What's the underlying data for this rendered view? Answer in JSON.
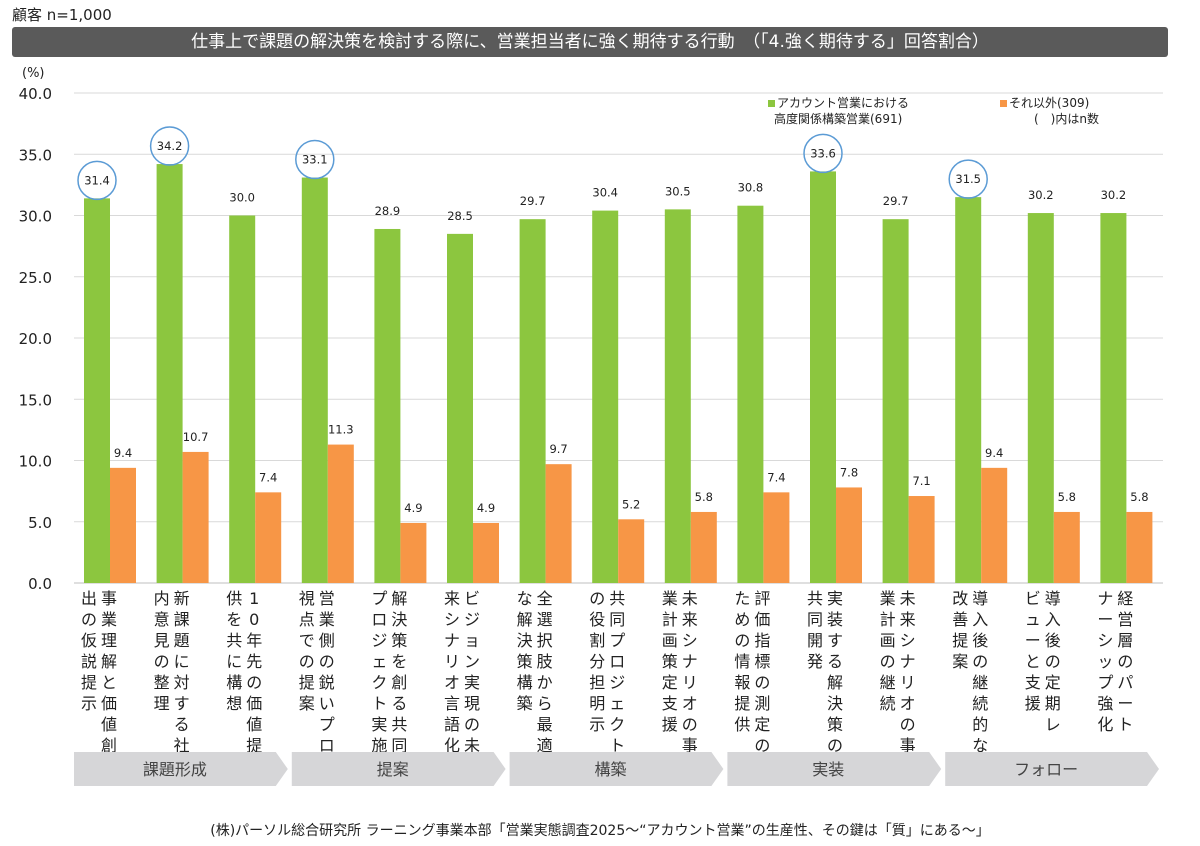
{
  "header": {
    "note": "顧客 n=1,000",
    "title": "仕事上で課題の解決策を検討する際に、営業担当者に強く期待する行動　（「4.強く期待する」回答割合）",
    "unit": "(%)"
  },
  "legend": {
    "green_line1": "アカウント営業における",
    "green_line2": "高度関係構築営業(691)",
    "orange_line1": "それ以外(309)",
    "orange_line2": "(　)内はn数"
  },
  "colors": {
    "green": "#8cc63f",
    "orange": "#f79646",
    "circle": "#5b9bd5",
    "grid": "#d9d9d9",
    "arrow": "#d6d6d8"
  },
  "chart_data": {
    "type": "bar",
    "ylim": [
      0,
      40
    ],
    "y_ticks": [
      "0.0",
      "5.0",
      "10.0",
      "15.0",
      "20.0",
      "25.0",
      "30.0",
      "35.0",
      "40.0"
    ],
    "grid": true,
    "legend_position": "top-right",
    "categories": [
      "事業理解と価値創出の仮説提示",
      "新課題に対する社内意見の整理",
      "10年先の価値提供を共に構想",
      "営業側の鋭いプロ視点での提案",
      "解決策を創る共同プロジェクト実施",
      "ビジョン実現の未来シナリオ言語化",
      "全選択肢から最適な解決策構築",
      "共同プロジェクトの役割分担明示",
      "未来シナリオの事業計画策定支援",
      "評価指標の測定のための情報提供",
      "実装する解決策の共同開発",
      "未来シナリオの事業計画の継続",
      "導入後の継続的な改善提案",
      "導入後の定期レビューと支援",
      "経営層のパートナーシップ強化"
    ],
    "category_lines": [
      [
        "事業理解と価値創",
        "出の仮説提示"
      ],
      [
        "新課題に対する社",
        "内意見の整理"
      ],
      [
        "10年先の価値提",
        "供を共に構想"
      ],
      [
        "営業側の鋭いプロ",
        "視点での提案"
      ],
      [
        "解決策を創る共同",
        "プロジェクト実施"
      ],
      [
        "ビジョン実現の未",
        "来シナリオ言語化"
      ],
      [
        "全選択肢から最適",
        "な解決策構築"
      ],
      [
        "共同プロジェクト",
        "の役割分担明示"
      ],
      [
        "未来シナリオの事",
        "業計画策定支援"
      ],
      [
        "評価指標の測定の",
        "ための情報提供"
      ],
      [
        "実装する解決策の",
        "共同開発"
      ],
      [
        "未来シナリオの事",
        "業計画の継続"
      ],
      [
        "導入後の継続的な",
        "改善提案"
      ],
      [
        "導入後の定期レ",
        "ビューと支援"
      ],
      [
        "経営層のパート",
        "ナーシップ強化"
      ]
    ],
    "series": [
      {
        "name": "アカウント営業における高度関係構築営業(691)",
        "values": [
          31.4,
          34.2,
          30.0,
          33.1,
          28.9,
          28.5,
          29.7,
          30.4,
          30.5,
          30.8,
          33.6,
          29.7,
          31.5,
          30.2,
          30.2
        ],
        "labels": [
          "31.4",
          "34.2",
          "30.0",
          "33.1",
          "28.9",
          "28.5",
          "29.7",
          "30.4",
          "30.5",
          "30.8",
          "33.6",
          "29.7",
          "31.5",
          "30.2",
          "30.2"
        ]
      },
      {
        "name": "それ以外(309)",
        "values": [
          9.4,
          10.7,
          7.4,
          11.3,
          4.9,
          4.9,
          9.7,
          5.2,
          5.8,
          7.4,
          7.8,
          7.1,
          9.4,
          5.8,
          5.8
        ],
        "labels": [
          "9.4",
          "10.7",
          "7.4",
          "11.3",
          "4.9",
          "4.9",
          "9.7",
          "5.2",
          "5.8",
          "7.4",
          "7.8",
          "7.1",
          "9.4",
          "5.8",
          "5.8"
        ]
      }
    ],
    "highlighted": [
      0,
      1,
      3,
      10,
      12
    ]
  },
  "phases": [
    {
      "label": "課題形成",
      "start": 0,
      "end": 2
    },
    {
      "label": "提案",
      "start": 3,
      "end": 5
    },
    {
      "label": "構築",
      "start": 6,
      "end": 8
    },
    {
      "label": "実装",
      "start": 9,
      "end": 11
    },
    {
      "label": "フォロー",
      "start": 12,
      "end": 14
    }
  ],
  "footer": "(株)パーソル総合研究所 ラーニング事業本部「営業実態調査2025～“アカウント営業”の生産性、その鍵は「質」にある～」"
}
